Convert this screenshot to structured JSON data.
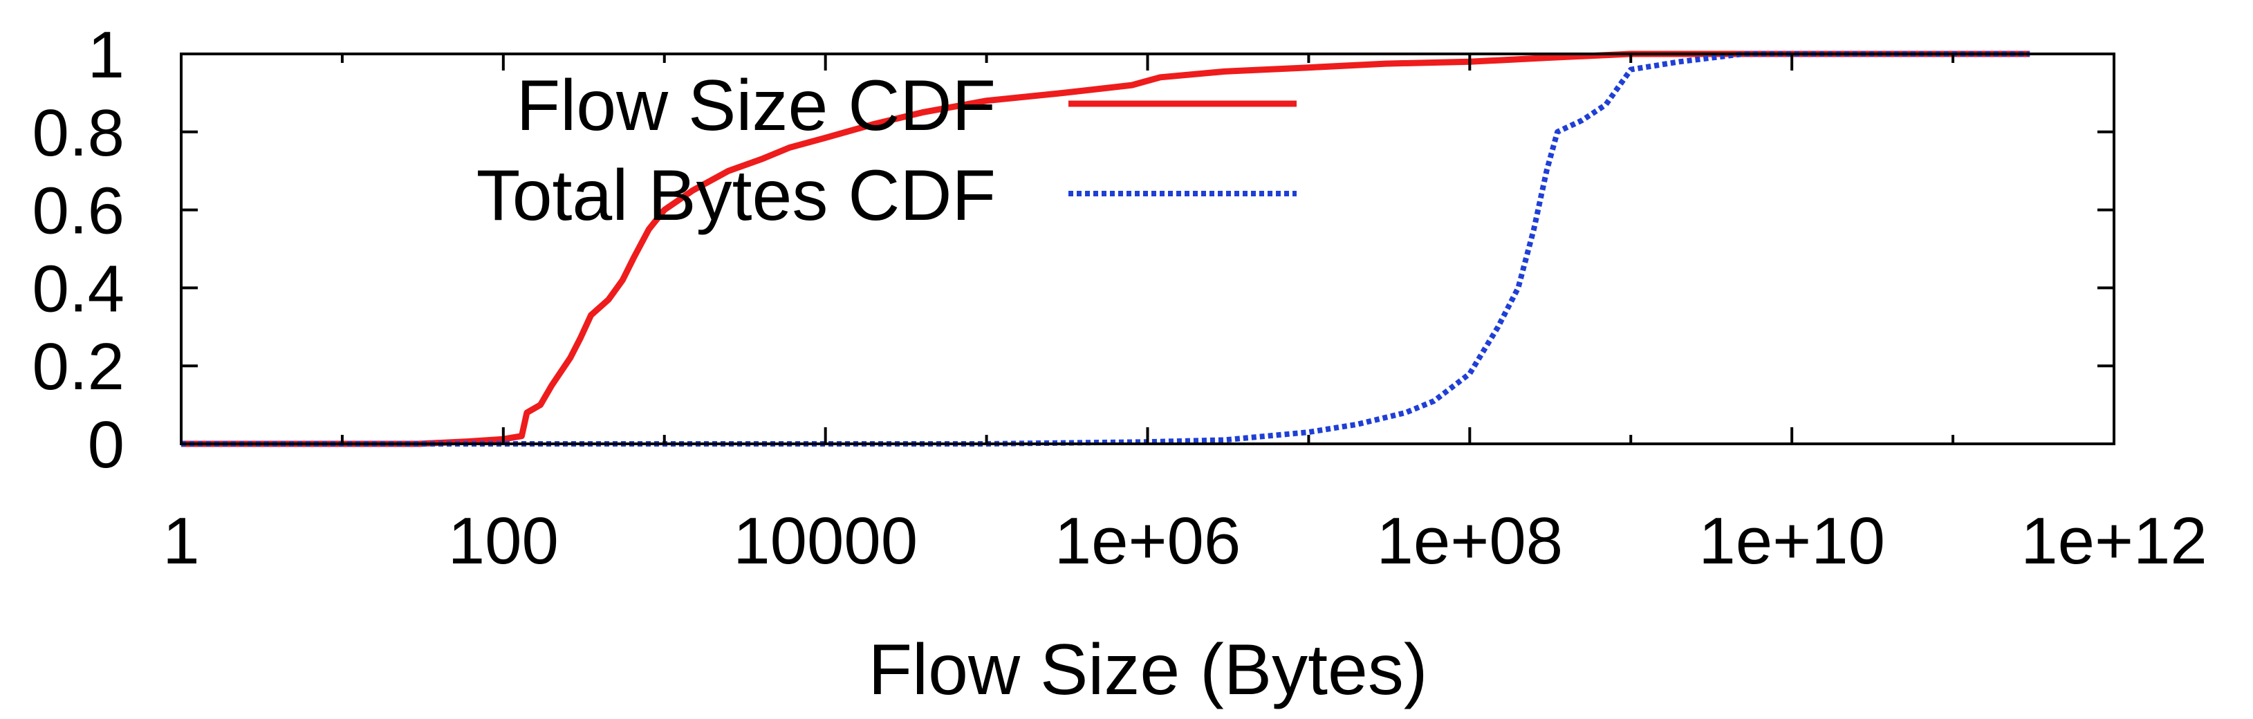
{
  "chart_data": {
    "type": "line",
    "title": "",
    "xlabel": "Flow Size (Bytes)",
    "ylabel": "",
    "x_scale": "log10",
    "xlim": [
      1,
      1000000000000.0
    ],
    "ylim": [
      0,
      1
    ],
    "grid": false,
    "legend_position": "top-center",
    "x_ticks": [
      1,
      100,
      10000,
      1000000.0,
      100000000.0,
      10000000000.0,
      1000000000000.0
    ],
    "x_tick_labels": [
      "1",
      "100",
      "10000",
      "1e+06",
      "1e+08",
      "1e+10",
      "1e+12"
    ],
    "y_ticks": [
      0,
      0.2,
      0.4,
      0.6,
      0.8,
      1
    ],
    "y_tick_labels": [
      "0",
      "0.2",
      "0.4",
      "0.6",
      "0.8",
      "1"
    ],
    "series": [
      {
        "name": "Flow Size CDF",
        "color": "#ee1c1c",
        "style": "solid",
        "points": [
          [
            1,
            0.0
          ],
          [
            30,
            0.0
          ],
          [
            60,
            0.006
          ],
          [
            100,
            0.012
          ],
          [
            130,
            0.02
          ],
          [
            140,
            0.08
          ],
          [
            170,
            0.1
          ],
          [
            200,
            0.15
          ],
          [
            260,
            0.22
          ],
          [
            300,
            0.27
          ],
          [
            350,
            0.33
          ],
          [
            450,
            0.37
          ],
          [
            550,
            0.42
          ],
          [
            650,
            0.48
          ],
          [
            800,
            0.55
          ],
          [
            1000,
            0.6
          ],
          [
            1500,
            0.65
          ],
          [
            2500,
            0.7
          ],
          [
            4000,
            0.73
          ],
          [
            6000,
            0.76
          ],
          [
            10000,
            0.785
          ],
          [
            20000,
            0.82
          ],
          [
            40000,
            0.85
          ],
          [
            100000,
            0.88
          ],
          [
            300000,
            0.9
          ],
          [
            800000,
            0.92
          ],
          [
            1200000,
            0.94
          ],
          [
            3000000,
            0.955
          ],
          [
            10000000.0,
            0.965
          ],
          [
            30000000.0,
            0.975
          ],
          [
            100000000.0,
            0.98
          ],
          [
            300000000.0,
            0.99
          ],
          [
            1000000000.0,
            1.0
          ],
          [
            300000000000.0,
            1.0
          ]
        ]
      },
      {
        "name": "Total Bytes CDF",
        "color": "#1f3fd6",
        "style": "dotted",
        "points": [
          [
            1,
            0.0
          ],
          [
            100000,
            0.0
          ],
          [
            1000000.0,
            0.005
          ],
          [
            3000000.0,
            0.01
          ],
          [
            10000000.0,
            0.03
          ],
          [
            20000000.0,
            0.05
          ],
          [
            40000000.0,
            0.08
          ],
          [
            60000000.0,
            0.11
          ],
          [
            100000000.0,
            0.18
          ],
          [
            150000000.0,
            0.3
          ],
          [
            200000000.0,
            0.4
          ],
          [
            250000000.0,
            0.55
          ],
          [
            300000000.0,
            0.7
          ],
          [
            350000000.0,
            0.8
          ],
          [
            500000000.0,
            0.83
          ],
          [
            700000000.0,
            0.87
          ],
          [
            1000000000.0,
            0.96
          ],
          [
            2000000000.0,
            0.98
          ],
          [
            5000000000.0,
            1.0
          ],
          [
            300000000000.0,
            1.0
          ]
        ]
      }
    ]
  }
}
